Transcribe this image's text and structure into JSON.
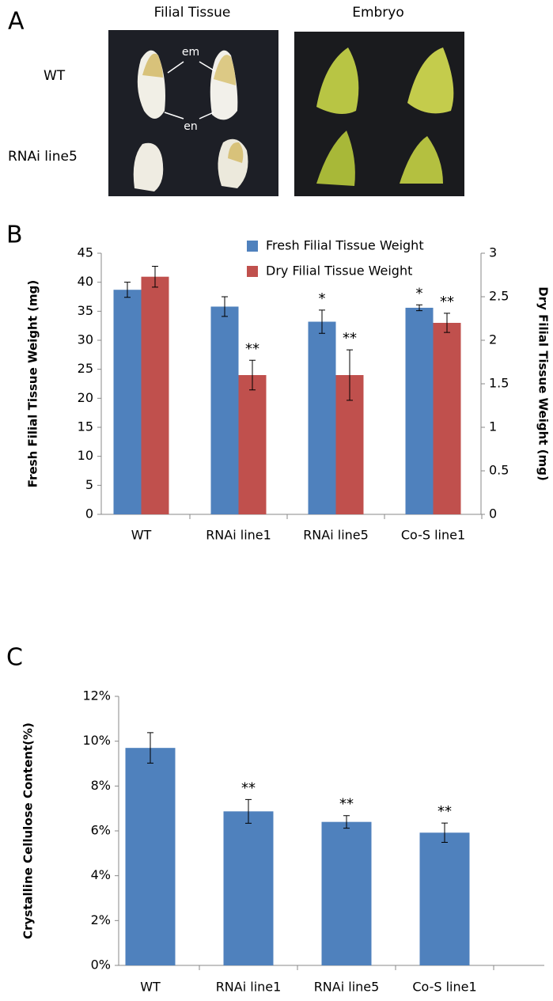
{
  "panel_a": {
    "panel_label": "A",
    "column_titles": [
      "Filial Tissue",
      "Embryo"
    ],
    "row_labels": [
      "WT",
      "RNAi line5"
    ],
    "annotations": [
      "em",
      "en"
    ]
  },
  "chart_data": [
    {
      "type": "bar",
      "panel_label": "B",
      "categories": [
        "WT",
        "RNAi line1",
        "RNAi line5",
        "Co-S line1"
      ],
      "ylabel": "Fresh Filial Tissue Weight (mg)",
      "y2label": "Dry Filial Tissue Weight (mg)",
      "ylim": [
        0,
        45
      ],
      "yticks": [
        0,
        5,
        10,
        15,
        20,
        25,
        30,
        35,
        40,
        45
      ],
      "y2lim": [
        0,
        3
      ],
      "y2ticks": [
        0,
        0.5,
        1,
        1.5,
        2,
        2.5,
        3
      ],
      "legend": "upper center",
      "grid": false,
      "series": [
        {
          "name": "Fresh Filial Tissue Weight",
          "color": "#4f81bd",
          "values": [
            38.7,
            35.8,
            33.2,
            35.6
          ],
          "errors": [
            1.3,
            1.7,
            2.0,
            0.5
          ],
          "significance": [
            null,
            null,
            "*",
            "*"
          ]
        },
        {
          "name": "Dry Filial Tissue Weight",
          "color": "#c0504d",
          "axis": "y2",
          "values": [
            2.73,
            1.6,
            1.6,
            2.2
          ],
          "errors": [
            0.12,
            0.17,
            0.29,
            0.11
          ],
          "significance": [
            null,
            "**",
            "**",
            "**"
          ]
        }
      ]
    },
    {
      "type": "bar",
      "panel_label": "C",
      "categories": [
        "WT",
        "RNAi line1",
        "RNAi line5",
        "Co-S line1"
      ],
      "ylabel": "Crystalline Cellulose Content(%)",
      "ylim": [
        0,
        12
      ],
      "yticks": [
        {
          "value": 0,
          "label": "0%"
        },
        {
          "value": 2,
          "label": "2%"
        },
        {
          "value": 4,
          "label": "4%"
        },
        {
          "value": 6,
          "label": "6%"
        },
        {
          "value": 8,
          "label": "8%"
        },
        {
          "value": 10,
          "label": "10%"
        },
        {
          "value": 12,
          "label": "12%"
        }
      ],
      "grid": false,
      "series": [
        {
          "name": null,
          "color": "#4f81bd",
          "values": [
            9.7,
            6.87,
            6.4,
            5.92
          ],
          "errors": [
            0.68,
            0.53,
            0.28,
            0.43
          ],
          "significance": [
            null,
            "**",
            "**",
            "**"
          ]
        }
      ]
    }
  ]
}
